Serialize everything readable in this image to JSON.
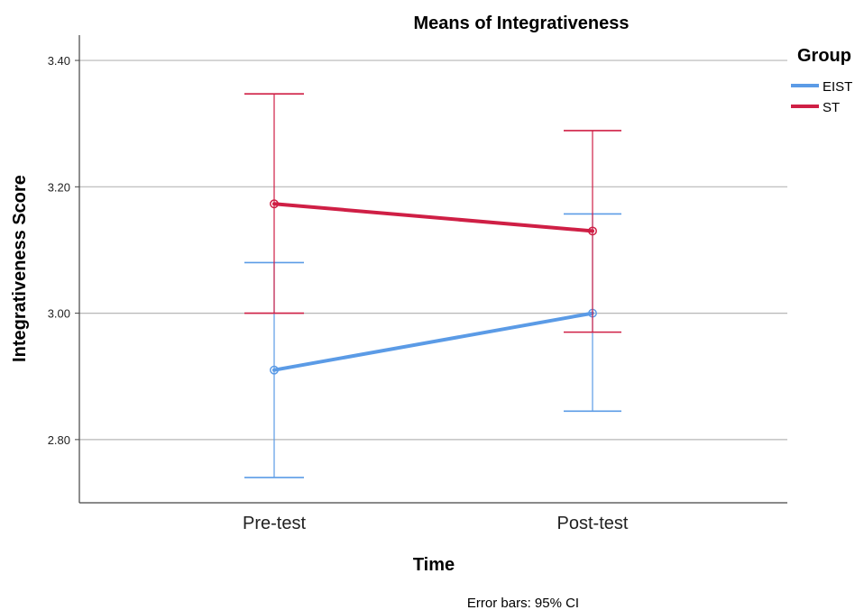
{
  "chart_data": {
    "type": "line",
    "title": "Means of Integrativeness",
    "xlabel": "Time",
    "ylabel": "Integrativeness Score",
    "categories": [
      "Pre-test",
      "Post-test"
    ],
    "ylim": [
      2.7,
      3.44
    ],
    "yticks": [
      2.8,
      3.0,
      3.2,
      3.4
    ],
    "ytick_labels": [
      "2.80",
      "3.00",
      "3.20",
      "3.40"
    ],
    "grid": "horizontal",
    "legend": {
      "title": "Group",
      "position": "top-right"
    },
    "series": [
      {
        "name": "EIST",
        "color": "#5b9be6",
        "values": [
          2.91,
          3.0
        ],
        "ci_low": [
          2.74,
          2.845
        ],
        "ci_high": [
          3.08,
          3.157
        ]
      },
      {
        "name": "ST",
        "color": "#cf1f45",
        "values": [
          3.173,
          3.13
        ],
        "ci_low": [
          3.0,
          2.97
        ],
        "ci_high": [
          3.347,
          3.289
        ]
      }
    ],
    "footnote": "Error bars: 95% CI"
  }
}
